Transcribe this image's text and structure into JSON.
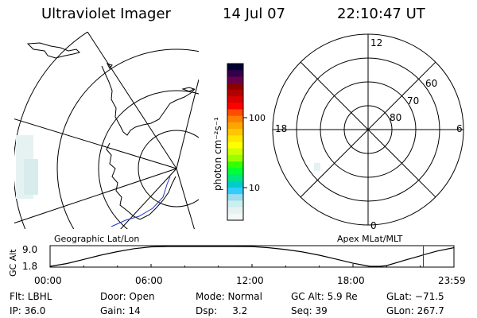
{
  "header": {
    "title": "Ultraviolet Imager",
    "date": "14 Jul 07",
    "time": "22:10:47 UT"
  },
  "colorbar": {
    "unit_label": "photon cm⁻²s⁻¹",
    "ticks": [
      "100",
      "10"
    ],
    "colors": [
      "#000033",
      "#33004d",
      "#66004d",
      "#8b0000",
      "#b30000",
      "#d90000",
      "#ff0000",
      "#ff4d00",
      "#ff8000",
      "#ffa500",
      "#ffc800",
      "#ffe600",
      "#ffff00",
      "#ccff00",
      "#99ff00",
      "#33ff00",
      "#00ff33",
      "#00e680",
      "#00cccc",
      "#33ccff",
      "#99ddee",
      "#cceeee",
      "#e6f2f2",
      "#f2f7f7"
    ]
  },
  "geo_panel": {
    "caption": "Geographic Lat/Lon"
  },
  "mlt_panel": {
    "caption": "Apex MLat/MLT",
    "mlt_labels": {
      "top": "12",
      "left": "18",
      "right": "6",
      "bottom": "0"
    },
    "lat_labels": [
      "60",
      "70",
      "80"
    ]
  },
  "chart_data": {
    "type": "line",
    "title": "",
    "ylabel": "GC Alt",
    "y_ticks": [
      "9.0",
      "1.8"
    ],
    "ylim": [
      1.8,
      9.0
    ],
    "x_ticks": [
      "00:00",
      "06:00",
      "12:00",
      "18:00",
      "23:59"
    ],
    "xlim_hours": [
      0,
      24
    ],
    "series": [
      {
        "x": [
          0,
          1,
          2,
          3,
          4,
          5,
          6,
          7,
          8,
          9,
          10,
          11,
          12,
          13,
          14,
          15,
          16,
          17,
          18,
          19,
          19.6,
          20,
          21,
          22,
          22.18,
          23,
          23.98
        ],
        "values": [
          1.8,
          3.0,
          4.4,
          5.8,
          7.0,
          8.0,
          8.6,
          9.0,
          9.1,
          9.1,
          9.0,
          8.9,
          8.7,
          8.3,
          7.7,
          6.9,
          5.8,
          4.5,
          3.1,
          2.0,
          1.8,
          2.3,
          4.0,
          5.6,
          5.9,
          7.2,
          8.3
        ]
      }
    ],
    "marker_hours": 22.18
  },
  "footer": {
    "flt": "Flt: LBHL",
    "ip": "IP: 36.0",
    "door": "Door: Open",
    "gain": "Gain: 14",
    "mode": "Mode: Normal",
    "dsp": "Dsp:     3.2",
    "gcalt": "GC Alt: 5.9 Re",
    "seq": "Seq: 39",
    "glat": "GLat: −71.5",
    "glon": "GLon: 267.7"
  }
}
